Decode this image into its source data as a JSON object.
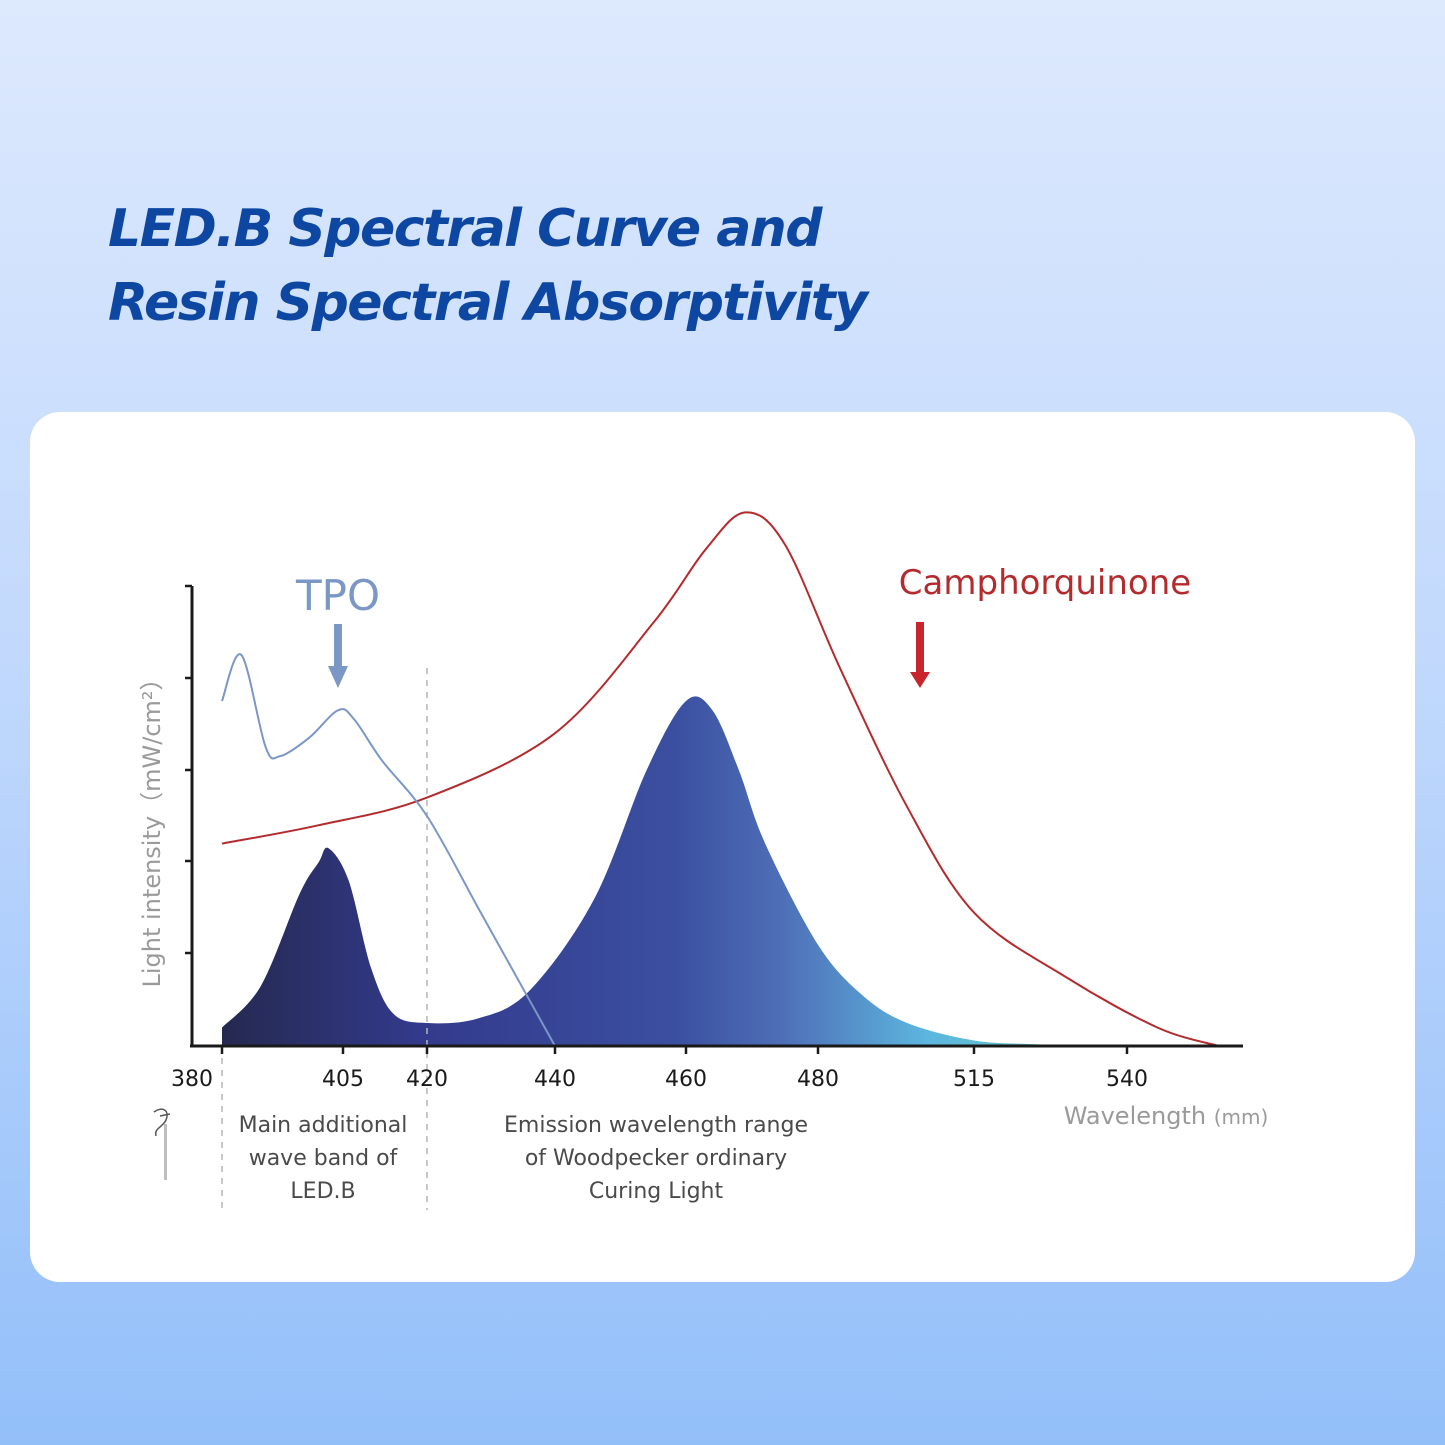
{
  "title": {
    "line1": "LED.B Spectral Curve and",
    "line2": "Resin Spectral Absorptivity"
  },
  "colors": {
    "title": "#0d47a1",
    "tpo": "#7a97c6",
    "camphorquinone": "#b42b2e",
    "emission_start": "#252950",
    "emission_mid": "#3b4fa0",
    "emission_end": "#66cfb3"
  },
  "chart_data": {
    "type": "area",
    "ylabel": "Light intensity（mW/cm²）",
    "xlabel": "Wavelength",
    "xlabel_unit": "(mm)",
    "x_ticks": [
      "380",
      "405",
      "420",
      "440",
      "460",
      "480",
      "515",
      "540"
    ],
    "x_tick_values": [
      380,
      405,
      420,
      440,
      460,
      480,
      515,
      540
    ],
    "grid": false,
    "series": [
      {
        "name": "TPO",
        "kind": "line",
        "x": [
          380,
          384,
          389,
          392,
          398,
          404,
          407,
          412,
          420,
          428,
          434,
          440
        ],
        "y": [
          0.75,
          0.85,
          0.65,
          0.63,
          0.67,
          0.73,
          0.71,
          0.62,
          0.5,
          0.3,
          0.15,
          0.0
        ]
      },
      {
        "name": "Camphorquinone",
        "kind": "line",
        "x": [
          380,
          400,
          420,
          440,
          455,
          463,
          469,
          475,
          485,
          500,
          515,
          530,
          545,
          555
        ],
        "y": [
          0.44,
          0.48,
          0.54,
          0.68,
          0.92,
          1.08,
          1.16,
          1.09,
          0.82,
          0.52,
          0.29,
          0.15,
          0.04,
          0.0
        ]
      },
      {
        "name": "LED.B emission",
        "kind": "area",
        "x": [
          380,
          388,
          396,
          400,
          402,
          406,
          410,
          414,
          420,
          428,
          436,
          446,
          454,
          460,
          464,
          468,
          472,
          480,
          490,
          500,
          515,
          525,
          535,
          540
        ],
        "y": [
          0.04,
          0.13,
          0.33,
          0.4,
          0.43,
          0.36,
          0.17,
          0.07,
          0.05,
          0.06,
          0.12,
          0.32,
          0.6,
          0.75,
          0.73,
          0.6,
          0.44,
          0.22,
          0.11,
          0.05,
          0.012,
          0.004,
          0.0,
          0.0
        ]
      }
    ],
    "annotations": [
      {
        "label": "TPO",
        "target": 403
      },
      {
        "label": "Camphorquinone",
        "target": 500
      }
    ],
    "regions": [
      {
        "from": 385,
        "to": 420,
        "lines": [
          "Main additional",
          "wave band of",
          "LED.B"
        ]
      },
      {
        "from": 420,
        "to": 492,
        "lines": [
          "Emission wavelength range",
          "of Woodpecker ordinary",
          "Curing Light"
        ]
      }
    ]
  }
}
